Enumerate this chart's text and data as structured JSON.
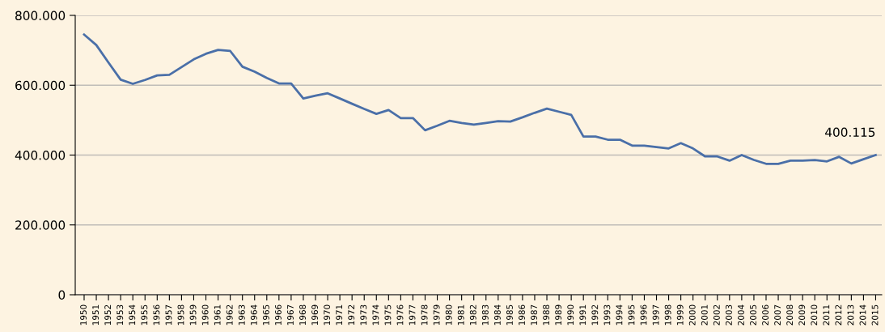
{
  "chart_data": {
    "type": "line",
    "categories": [
      "1950",
      "1951",
      "1952",
      "1953",
      "1954",
      "1955",
      "1956",
      "1957",
      "1958",
      "1959",
      "1960",
      "1961",
      "1962",
      "1963",
      "1964",
      "1965",
      "1966",
      "1967",
      "1968",
      "1969",
      "1970",
      "1971",
      "1972",
      "1973",
      "1974",
      "1975",
      "1976",
      "1977",
      "1978",
      "1979",
      "1980",
      "1981",
      "1982",
      "1983",
      "1984",
      "1985",
      "1986",
      "1987",
      "1988",
      "1989",
      "1990",
      "1991",
      "1992",
      "1993",
      "1994",
      "1995",
      "1996",
      "1997",
      "1998",
      "1999",
      "2000",
      "2001",
      "2002",
      "2003",
      "2004",
      "2005",
      "2006",
      "2007",
      "2008",
      "2009",
      "2010",
      "2011",
      "2012",
      "2013",
      "2014",
      "2015"
    ],
    "series": [
      {
        "color": "#4a6fa8",
        "values": [
          745000,
          715000,
          665000,
          616000,
          604000,
          615000,
          628000,
          630000,
          652000,
          674000,
          690000,
          701000,
          698000,
          653000,
          639000,
          621000,
          605000,
          605000,
          562000,
          570000,
          577000,
          562000,
          547000,
          532000,
          518000,
          529000,
          506000,
          506000,
          471000,
          484000,
          498000,
          492000,
          487000,
          492000,
          497000,
          496000,
          508000,
          521000,
          533000,
          524000,
          515000,
          453000,
          453000,
          444000,
          444000,
          427000,
          427000,
          423000,
          419000,
          434000,
          419000,
          396000,
          396000,
          384000,
          400000,
          386000,
          375000,
          375000,
          384000,
          384000,
          386000,
          382000,
          395000,
          376000,
          388000,
          400115
        ]
      }
    ],
    "ylim": [
      0,
      800000
    ],
    "yticks": [
      0,
      {
        "value": 200000,
        "label": "200.000"
      },
      {
        "value": 400000,
        "label": "400.000"
      },
      {
        "value": 600000,
        "label": "600.000"
      },
      {
        "value": 800000,
        "label": "800.000"
      }
    ],
    "grid": "y",
    "marker": "none",
    "line_style": "solid",
    "annotations": [
      {
        "text": "400.115",
        "x": "2015",
        "y": 400115
      }
    ]
  }
}
